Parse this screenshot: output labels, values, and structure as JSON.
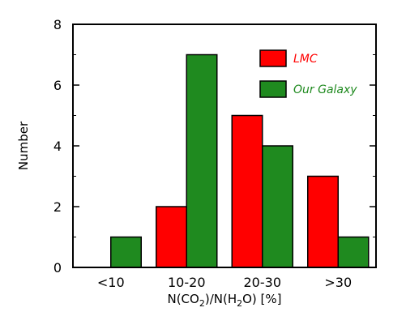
{
  "chart_data": {
    "type": "bar",
    "categories": [
      "<10",
      "10-20",
      "20-30",
      ">30"
    ],
    "series": [
      {
        "name": "LMC",
        "color": "#ff0000",
        "values": [
          0,
          2,
          5,
          3
        ]
      },
      {
        "name": "Our Galaxy",
        "color": "#1f8a1f",
        "values": [
          1,
          7,
          4,
          1
        ]
      }
    ],
    "ylabel": "Number",
    "xlabel_parts": {
      "a": "N(CO",
      "b": "2",
      "c": ")/N(H",
      "d": "2",
      "e": "O) [%]"
    },
    "ylim": [
      0,
      8
    ],
    "yticks": [
      0,
      2,
      4,
      6,
      8
    ],
    "grid": false,
    "legend_position": "top-right"
  }
}
